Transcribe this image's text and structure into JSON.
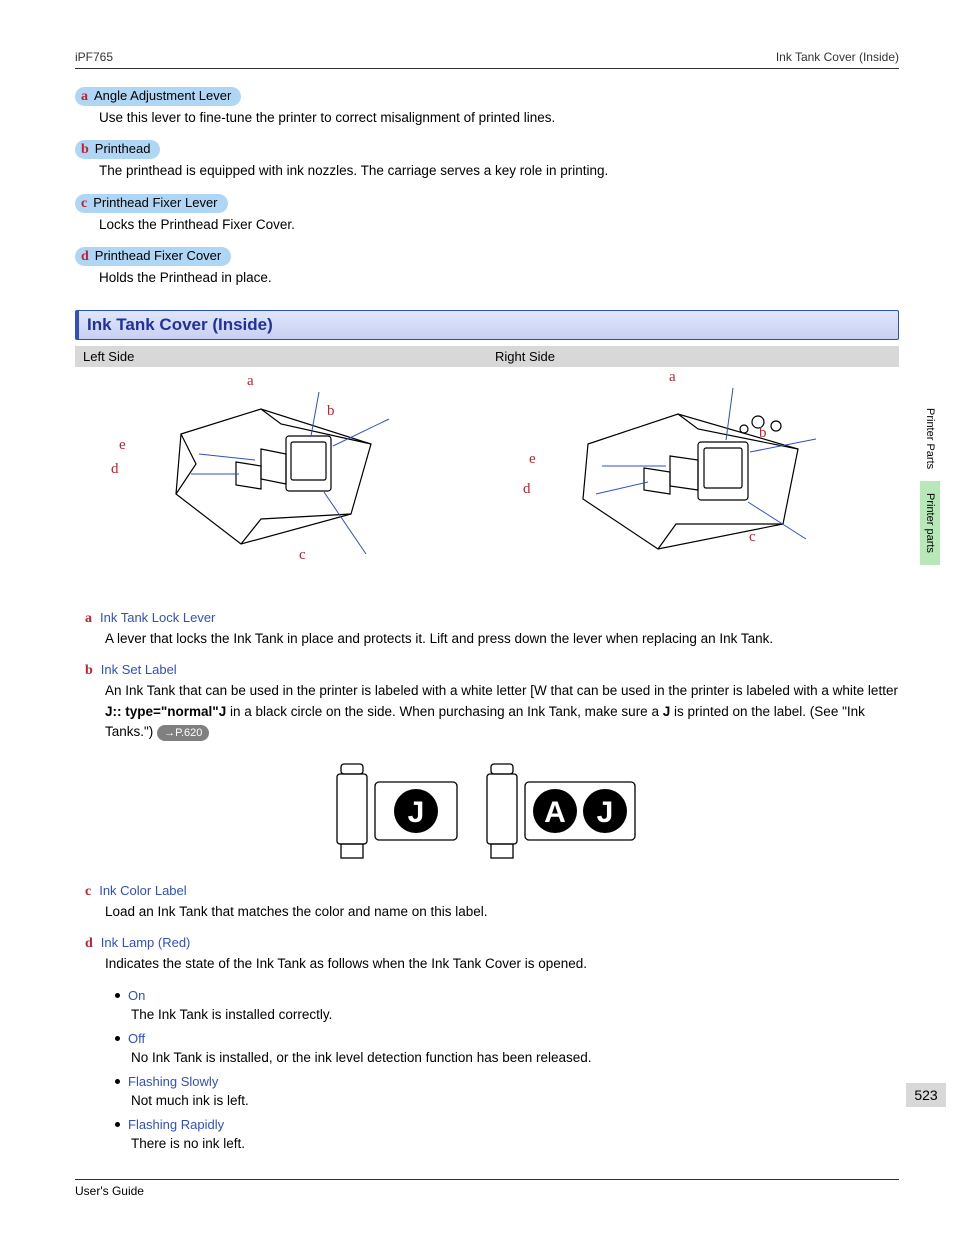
{
  "header": {
    "left": "iPF765",
    "right": "Ink Tank Cover (Inside)"
  },
  "top_defs": [
    {
      "letter": "a",
      "title": "Angle Adjustment Lever",
      "desc": "Use this lever to fine-tune the printer to correct misalignment of printed lines."
    },
    {
      "letter": "b",
      "title": "Printhead",
      "desc": "The printhead is equipped with ink nozzles. The carriage serves a key role in printing."
    },
    {
      "letter": "c",
      "title": "Printhead Fixer Lever",
      "desc": "Locks the Printhead Fixer Cover."
    },
    {
      "letter": "d",
      "title": "Printhead Fixer Cover",
      "desc": "Holds the Printhead in place."
    }
  ],
  "section_title": "Ink Tank Cover (Inside)",
  "diagram_labels": {
    "left": "Left Side",
    "right": "Right Side"
  },
  "diagram_callouts": [
    "a",
    "b",
    "c",
    "d",
    "e"
  ],
  "lower_defs": [
    {
      "letter": "a",
      "title": "Ink Tank Lock Lever",
      "desc": "A lever that locks the Ink Tank in place and protects it. Lift and press down the lever when replacing an Ink Tank."
    },
    {
      "letter": "b",
      "title": "Ink Set Label",
      "desc_pre": "An Ink Tank that can be used in the printer is labeled with a white letter [W that can be used in the printer is labeled with a white letter ",
      "bold1": "J:: type=\"normal\"J",
      "desc_mid": " in a black circle on the side. When purchasing an Ink Tank, make sure a ",
      "bold2": "J",
      "desc_post": " is printed on the label.  (See \"Ink Tanks.\") ",
      "page_ref": "→P.620"
    },
    {
      "letter": "c",
      "title": "Ink Color Label",
      "desc": "Load an Ink Tank that matches the color and name on this label."
    },
    {
      "letter": "d",
      "title": "Ink Lamp (Red)",
      "desc": "Indicates the state of the Ink Tank as follows when the Ink Tank Cover is opened."
    }
  ],
  "lamp_states": [
    {
      "title": "On",
      "desc": "The Ink Tank is installed correctly."
    },
    {
      "title": "Off",
      "desc": "No Ink Tank is installed, or the ink level detection function has been released."
    },
    {
      "title": "Flashing Slowly",
      "desc": "Not much ink is left."
    },
    {
      "title": "Flashing Rapidly",
      "desc": "There is no ink left."
    }
  ],
  "side_tabs": [
    {
      "label": "Printer Parts",
      "active": false
    },
    {
      "label": "Printer parts",
      "active": true
    }
  ],
  "page_number": "523",
  "footer": "User's Guide",
  "ink_badges": {
    "first": "J",
    "second_a": "A",
    "second_j": "J"
  },
  "colors": {
    "accent_blue": "#3050c0",
    "label_bg": "#b0d6f5",
    "letter_red": "#c02030",
    "section_grad_top": "#e0e6fa",
    "section_grad_bot": "#c8d0f2",
    "tab_active": "#b8e8b8",
    "gray_bg": "#d8d8d8",
    "pill": "#808080"
  }
}
